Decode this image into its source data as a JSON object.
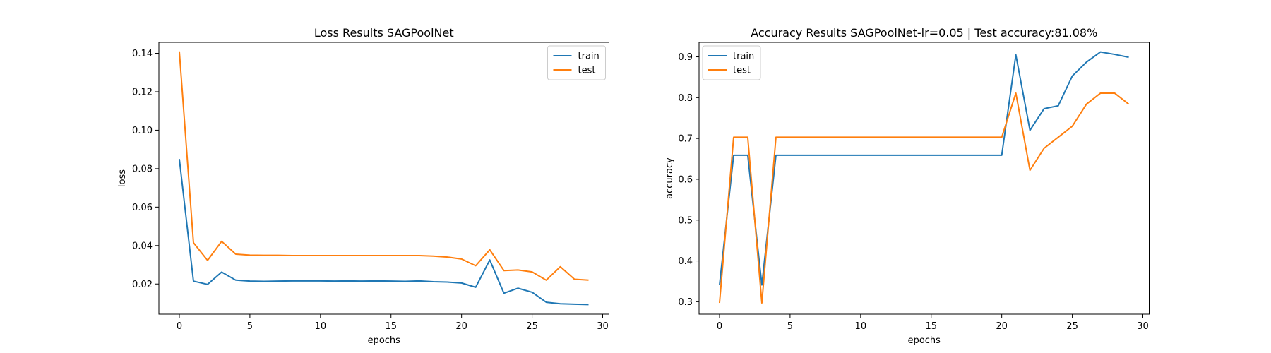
{
  "chart_data": [
    {
      "type": "line",
      "title": "Loss Results SAGPoolNet",
      "xlabel": "epochs",
      "ylabel": "loss",
      "xlim": [
        -1.45,
        30.45
      ],
      "ylim": [
        0.0043,
        0.1457
      ],
      "xticks": [
        0,
        5,
        10,
        15,
        20,
        25,
        30
      ],
      "xtick_labels": [
        "0",
        "5",
        "10",
        "15",
        "20",
        "25",
        "30"
      ],
      "yticks": [
        0.02,
        0.04,
        0.06,
        0.08,
        0.1,
        0.12,
        0.14
      ],
      "ytick_labels": [
        "0.02",
        "0.04",
        "0.06",
        "0.08",
        "0.10",
        "0.12",
        "0.14"
      ],
      "grid": false,
      "legend_position": "top-right",
      "x": [
        0,
        1,
        2,
        3,
        4,
        5,
        6,
        7,
        8,
        9,
        10,
        11,
        12,
        13,
        14,
        15,
        16,
        17,
        18,
        19,
        20,
        21,
        22,
        23,
        24,
        25,
        26,
        27,
        28,
        29
      ],
      "series": [
        {
          "name": "train",
          "color": "#1f77b4",
          "values": [
            0.085,
            0.0215,
            0.0198,
            0.0262,
            0.022,
            0.0215,
            0.0214,
            0.0215,
            0.0216,
            0.0216,
            0.0216,
            0.0215,
            0.0216,
            0.0215,
            0.0216,
            0.0215,
            0.0214,
            0.0216,
            0.0212,
            0.021,
            0.0205,
            0.0183,
            0.0325,
            0.0152,
            0.0178,
            0.0157,
            0.0105,
            0.0097,
            0.0095,
            0.0093
          ]
        },
        {
          "name": "test",
          "color": "#ff7f0e",
          "values": [
            0.141,
            0.0415,
            0.0323,
            0.0422,
            0.0355,
            0.035,
            0.0349,
            0.0349,
            0.0348,
            0.0348,
            0.0348,
            0.0348,
            0.0348,
            0.0348,
            0.0348,
            0.0348,
            0.0348,
            0.0348,
            0.0345,
            0.034,
            0.033,
            0.0295,
            0.0378,
            0.027,
            0.0273,
            0.0263,
            0.022,
            0.029,
            0.0225,
            0.022
          ]
        }
      ]
    },
    {
      "type": "line",
      "title": "Accuracy Results SAGPoolNet-lr=0.05 | Test accuracy:81.08%",
      "xlabel": "epochs",
      "ylabel": "accuracy",
      "xlim": [
        -1.45,
        30.45
      ],
      "ylim": [
        0.2695,
        0.9355
      ],
      "xticks": [
        0,
        5,
        10,
        15,
        20,
        25,
        30
      ],
      "xtick_labels": [
        "0",
        "5",
        "10",
        "15",
        "20",
        "25",
        "30"
      ],
      "yticks": [
        0.3,
        0.4,
        0.5,
        0.6,
        0.7,
        0.8,
        0.9
      ],
      "ytick_labels": [
        "0.3",
        "0.4",
        "0.5",
        "0.6",
        "0.7",
        "0.8",
        "0.9"
      ],
      "grid": false,
      "legend_position": "top-left",
      "x": [
        0,
        1,
        2,
        3,
        4,
        5,
        6,
        7,
        8,
        9,
        10,
        11,
        12,
        13,
        14,
        15,
        16,
        17,
        18,
        19,
        20,
        21,
        22,
        23,
        24,
        25,
        26,
        27,
        28,
        29
      ],
      "series": [
        {
          "name": "train",
          "color": "#1f77b4",
          "values": [
            0.341,
            0.659,
            0.659,
            0.341,
            0.659,
            0.659,
            0.659,
            0.659,
            0.659,
            0.659,
            0.659,
            0.659,
            0.659,
            0.659,
            0.659,
            0.659,
            0.659,
            0.659,
            0.659,
            0.659,
            0.659,
            0.905,
            0.72,
            0.773,
            0.78,
            0.853,
            0.887,
            0.912,
            0.906,
            0.899
          ]
        },
        {
          "name": "test",
          "color": "#ff7f0e",
          "values": [
            0.297,
            0.703,
            0.703,
            0.297,
            0.703,
            0.703,
            0.703,
            0.703,
            0.703,
            0.703,
            0.703,
            0.703,
            0.703,
            0.703,
            0.703,
            0.703,
            0.703,
            0.703,
            0.703,
            0.703,
            0.703,
            0.811,
            0.622,
            0.676,
            0.703,
            0.73,
            0.784,
            0.811,
            0.811,
            0.784
          ]
        }
      ]
    }
  ]
}
